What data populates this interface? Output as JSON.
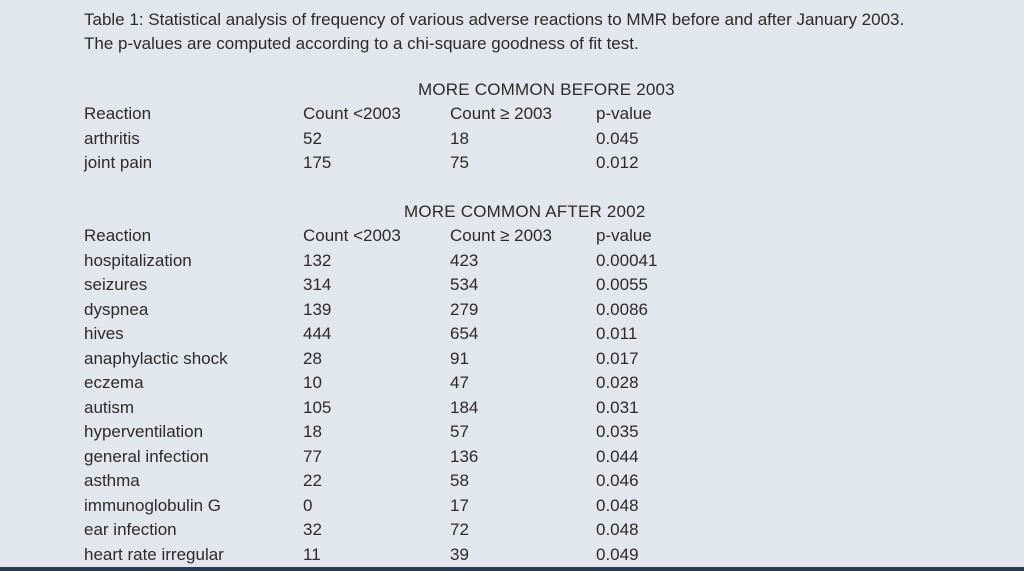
{
  "caption": {
    "line1": "Table 1: Statistical analysis of frequency of various adverse reactions to MMR before and after January 2003.",
    "line2": "The p-values are computed according to a chi-square goodness of fit test."
  },
  "sections": [
    {
      "title": "MORE COMMON BEFORE 2003",
      "headers": [
        "Reaction",
        "Count <2003",
        "Count ≥ 2003",
        "p-value"
      ],
      "rows": [
        [
          "arthritis",
          "52",
          "18",
          "0.045"
        ],
        [
          "joint pain",
          "175",
          "75",
          "0.012"
        ]
      ]
    },
    {
      "title": "MORE COMMON AFTER 2002",
      "headers": [
        "Reaction",
        "Count <2003",
        "Count ≥ 2003",
        "p-value"
      ],
      "rows": [
        [
          "hospitalization",
          "132",
          "423",
          "0.00041"
        ],
        [
          "seizures",
          "314",
          "534",
          "0.0055"
        ],
        [
          "dyspnea",
          "139",
          "279",
          "0.0086"
        ],
        [
          "hives",
          "444",
          "654",
          "0.011"
        ],
        [
          "anaphylactic shock",
          "28",
          "91",
          "0.017"
        ],
        [
          "eczema",
          "10",
          "47",
          "0.028"
        ],
        [
          "autism",
          "105",
          "184",
          "0.031"
        ],
        [
          "hyperventilation",
          "18",
          "57",
          "0.035"
        ],
        [
          "general infection",
          "77",
          "136",
          "0.044"
        ],
        [
          "asthma",
          "22",
          "58",
          "0.046"
        ],
        [
          "immunoglobulin G",
          "0",
          "17",
          "0.048"
        ],
        [
          "ear infection",
          "32",
          "72",
          "0.048"
        ],
        [
          "heart rate irregular",
          "11",
          "39",
          "0.049"
        ]
      ]
    }
  ]
}
